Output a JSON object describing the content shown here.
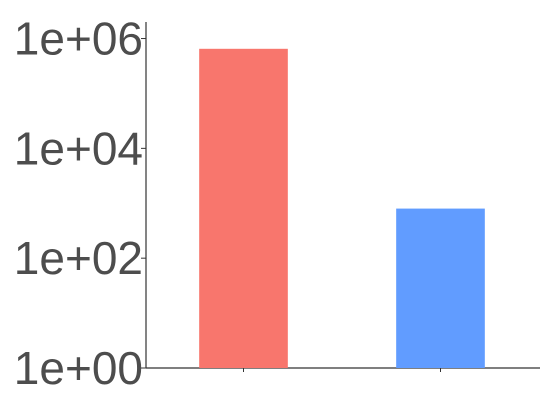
{
  "chart_data": {
    "type": "bar",
    "title": "",
    "xlabel": "",
    "ylabel": "",
    "y_scale": "log10",
    "ylim": [
      1,
      2000000
    ],
    "y_ticks": [
      {
        "value": 1,
        "label": "1e+00"
      },
      {
        "value": 100,
        "label": "1e+02"
      },
      {
        "value": 10000,
        "label": "1e+04"
      },
      {
        "value": 1000000,
        "label": "1e+06"
      }
    ],
    "categories": [
      "",
      ""
    ],
    "values": [
      650000,
      800
    ],
    "colors": [
      "#F8766D",
      "#619CFF"
    ],
    "grid": false,
    "legend": "none"
  }
}
